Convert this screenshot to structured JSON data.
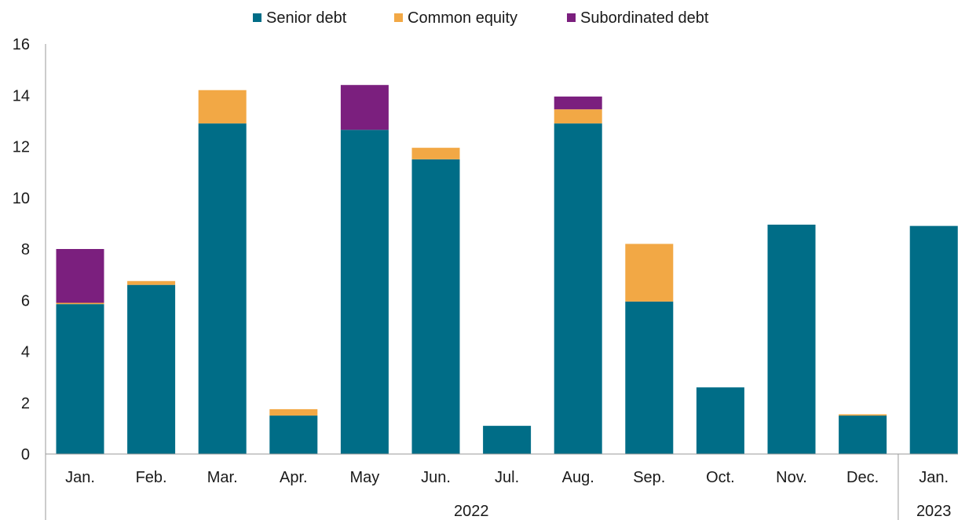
{
  "chart_data": {
    "type": "bar",
    "stacked": true,
    "categories": [
      "Jan.",
      "Feb.",
      "Mar.",
      "Apr.",
      "May",
      "Jun.",
      "Jul.",
      "Aug.",
      "Sep.",
      "Oct.",
      "Nov.",
      "Dec.",
      "Jan."
    ],
    "groups": [
      {
        "label": "2022",
        "start": 0,
        "end": 11
      },
      {
        "label": "2023",
        "start": 12,
        "end": 12
      }
    ],
    "series": [
      {
        "name": "Senior debt",
        "color": "#006d87",
        "values": [
          5.85,
          6.6,
          12.9,
          1.5,
          12.65,
          11.5,
          1.1,
          12.9,
          5.95,
          2.6,
          8.95,
          1.5,
          8.9
        ]
      },
      {
        "name": "Common equity",
        "color": "#f2a845",
        "values": [
          0.05,
          0.15,
          1.3,
          0.25,
          0.0,
          0.45,
          0.0,
          0.55,
          2.25,
          0.0,
          0.0,
          0.05,
          0.0
        ]
      },
      {
        "name": "Subordinated debt",
        "color": "#7b1f7e",
        "values": [
          2.1,
          0.0,
          0.0,
          0.0,
          1.75,
          0.0,
          0.0,
          0.5,
          0.0,
          0.0,
          0.0,
          0.0,
          0.0
        ]
      }
    ],
    "yticks": [
      0,
      2,
      4,
      6,
      8,
      10,
      12,
      14,
      16
    ],
    "ylim": [
      0,
      16
    ],
    "legend_position": "top-center",
    "grid": false
  }
}
